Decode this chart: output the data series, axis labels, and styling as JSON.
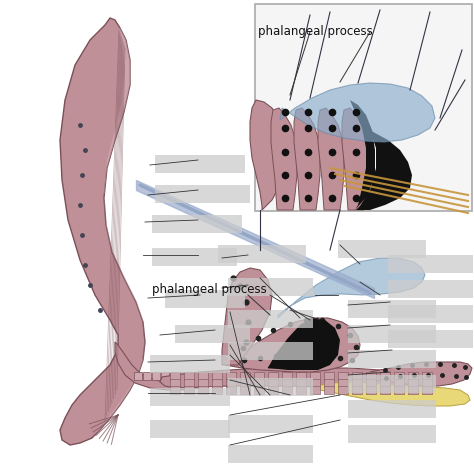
{
  "bg_color": "#ffffff",
  "mc": "#c09098",
  "ec": "#7a5058",
  "bc": "#8aaecc",
  "yc": "#e8d878",
  "blk": "#111111",
  "gray_lbl": "#cccccc",
  "line_col": "#444466",
  "gold_col": "#c8963c",
  "figw": 4.74,
  "figh": 4.67,
  "dpi": 100
}
